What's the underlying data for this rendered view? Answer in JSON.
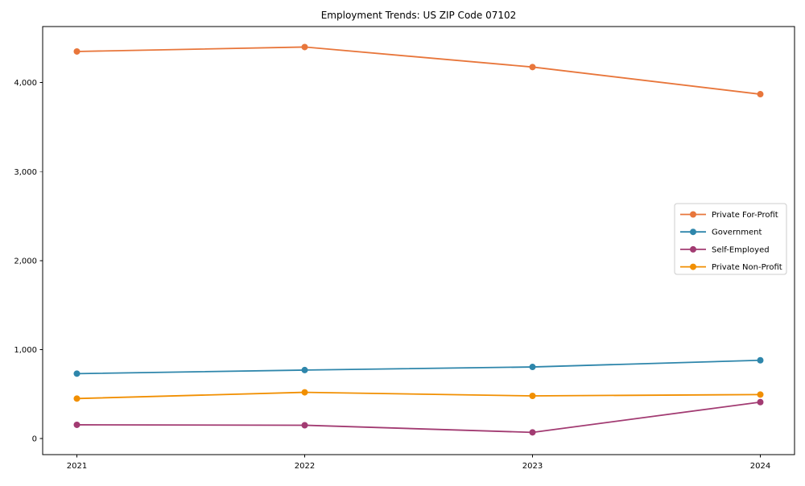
{
  "title": "Employment Trends: US ZIP Code 07102",
  "chart_data": {
    "type": "line",
    "title": "Employment Trends: US ZIP Code 07102",
    "xlabel": "",
    "ylabel": "",
    "x": [
      2021,
      2022,
      2023,
      2024
    ],
    "xtick_labels": [
      "2021",
      "2022",
      "2023",
      "2024"
    ],
    "yticks": [
      0,
      1000,
      2000,
      3000,
      4000
    ],
    "ytick_labels": [
      "0",
      "1,000",
      "2,000",
      "3,000",
      "4,000"
    ],
    "ylim": [
      -180,
      4630
    ],
    "grid": false,
    "legend_position": "right",
    "series": [
      {
        "name": "Private For-Profit",
        "color": "#E8763B",
        "values": [
          4350,
          4400,
          4175,
          3870
        ]
      },
      {
        "name": "Government",
        "color": "#2E86AB",
        "values": [
          730,
          770,
          805,
          880
        ]
      },
      {
        "name": "Self-Employed",
        "color": "#A23B72",
        "values": [
          155,
          150,
          70,
          410
        ]
      },
      {
        "name": "Private Non-Profit",
        "color": "#F18F01",
        "values": [
          450,
          520,
          480,
          495
        ]
      }
    ],
    "colors": {
      "spine": "#000000",
      "tick_label": "#000000",
      "legend_border": "#cccccc",
      "background": "#ffffff"
    }
  }
}
